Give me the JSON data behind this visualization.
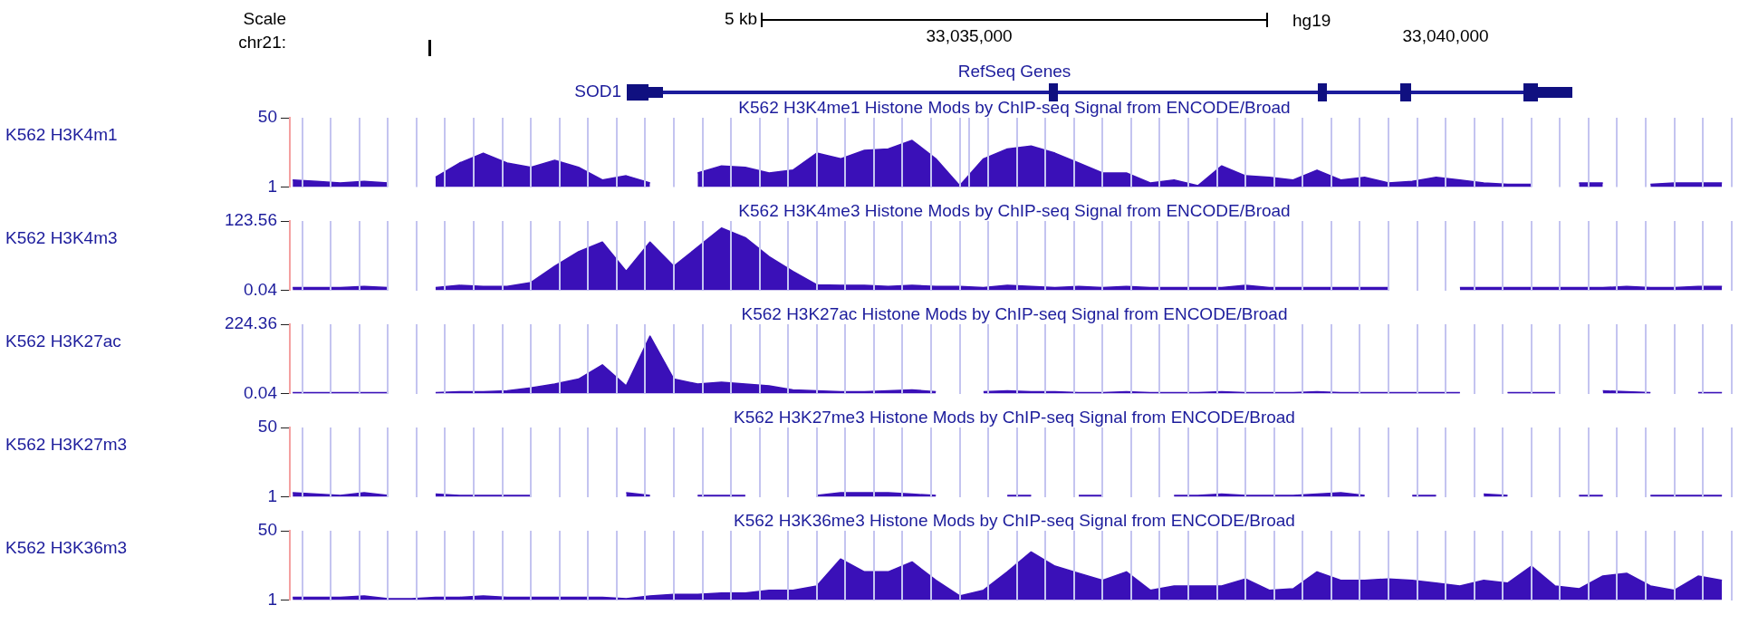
{
  "chart_data": [
    {
      "type": "area",
      "title": "K562 H3K4me1 Histone Mods by ChIP-seq Signal from ENCODE/Broad",
      "annotations": [
        "Scale",
        "chr21:",
        "5 kb",
        "hg19",
        "RefSeq Genes",
        "SOD1"
      ],
      "x": [
        33027900,
        33028150,
        33028400,
        33028650,
        33028900,
        33029150,
        33029400,
        33029650,
        33029900,
        33030150,
        33030400,
        33030650,
        33030900,
        33031150,
        33031400,
        33031650,
        33031900,
        33032150,
        33032400,
        33032650,
        33032900,
        33033150,
        33033400,
        33033650,
        33033900,
        33034150,
        33034400,
        33034650,
        33034900,
        33035150,
        33035400,
        33035650,
        33035900,
        33036150,
        33036400,
        33036650,
        33036900,
        33037150,
        33037400,
        33037650,
        33037900,
        33038150,
        33038400,
        33038650,
        33038900,
        33039150,
        33039400,
        33039650,
        33039900,
        33040150,
        33040400,
        33040650,
        33040900,
        33041150,
        33041400,
        33041650,
        33041900,
        33042150,
        33042400,
        33042650,
        33042900
      ],
      "series": [
        {
          "name": "K562 H3K4m1",
          "color": "#3a10b8",
          "values": [
            6,
            5,
            4,
            5,
            4,
            null,
            8,
            18,
            25,
            18,
            15,
            20,
            15,
            6,
            9,
            4,
            null,
            11,
            16,
            15,
            11,
            13,
            25,
            21,
            27,
            28,
            34,
            21,
            2,
            21,
            28,
            30,
            25,
            18,
            11,
            11,
            4,
            6,
            2,
            16,
            9,
            8,
            6,
            13,
            6,
            8,
            4,
            5,
            8,
            6,
            4,
            3,
            3,
            null,
            4,
            4,
            null,
            3,
            4,
            4,
            4
          ]
        }
      ],
      "xlim": [
        33027870,
        33043060
      ],
      "xticks": [
        {
          "value": 33028000,
          "label": null
        },
        {
          "value": 33028300,
          "label": null
        },
        {
          "value": 33028600,
          "label": null
        },
        {
          "value": 33028900,
          "label": null
        },
        {
          "value": 33029200,
          "label": null
        },
        {
          "value": 33029500,
          "label": null
        },
        {
          "value": 33029800,
          "label": null
        },
        {
          "value": 33030100,
          "label": null
        },
        {
          "value": 33030400,
          "label": null
        },
        {
          "value": 33030700,
          "label": null
        },
        {
          "value": 33031000,
          "label": null
        },
        {
          "value": 33031300,
          "label": null
        },
        {
          "value": 33031600,
          "label": null
        },
        {
          "value": 33031900,
          "label": null
        },
        {
          "value": 33032200,
          "label": null
        },
        {
          "value": 33032500,
          "label": null
        },
        {
          "value": 33032800,
          "label": null
        },
        {
          "value": 33033100,
          "label": null
        },
        {
          "value": 33033400,
          "label": null
        },
        {
          "value": 33033700,
          "label": null
        },
        {
          "value": 33034000,
          "label": null
        },
        {
          "value": 33034300,
          "label": null
        },
        {
          "value": 33034600,
          "label": null
        },
        {
          "value": 33034900,
          "label": null
        },
        {
          "value": 33035000,
          "label": "33,035,000"
        },
        {
          "value": 33035200,
          "label": null
        },
        {
          "value": 33035500,
          "label": null
        },
        {
          "value": 33035800,
          "label": null
        },
        {
          "value": 33036100,
          "label": null
        },
        {
          "value": 33036400,
          "label": null
        },
        {
          "value": 33036700,
          "label": null
        },
        {
          "value": 33037000,
          "label": null
        },
        {
          "value": 33037300,
          "label": null
        },
        {
          "value": 33037600,
          "label": null
        },
        {
          "value": 33037900,
          "label": null
        },
        {
          "value": 33038200,
          "label": null
        },
        {
          "value": 33038500,
          "label": null
        },
        {
          "value": 33038800,
          "label": null
        },
        {
          "value": 33039100,
          "label": null
        },
        {
          "value": 33039400,
          "label": null
        },
        {
          "value": 33039700,
          "label": null
        },
        {
          "value": 33040000,
          "label": "33,040,000"
        },
        {
          "value": 33040300,
          "label": null
        },
        {
          "value": 33040600,
          "label": null
        },
        {
          "value": 33040900,
          "label": null
        },
        {
          "value": 33041200,
          "label": null
        },
        {
          "value": 33041500,
          "label": null
        },
        {
          "value": 33041800,
          "label": null
        },
        {
          "value": 33042100,
          "label": null
        },
        {
          "value": 33042400,
          "label": null
        },
        {
          "value": 33042700,
          "label": null
        },
        {
          "value": 33043000,
          "label": null
        }
      ],
      "ylim": [
        1,
        50
      ],
      "yticks": [
        1,
        50
      ],
      "grid": "x"
    },
    {
      "type": "area",
      "title": "K562 H3K4me3 Histone Mods by ChIP-seq Signal from ENCODE/Broad",
      "x": [
        33027900,
        33028150,
        33028400,
        33028650,
        33028900,
        33029150,
        33029400,
        33029650,
        33029900,
        33030150,
        33030400,
        33030650,
        33030900,
        33031150,
        33031400,
        33031650,
        33031900,
        33032150,
        33032400,
        33032650,
        33032900,
        33033150,
        33033400,
        33033650,
        33033900,
        33034150,
        33034400,
        33034650,
        33034900,
        33035150,
        33035400,
        33035650,
        33035900,
        33036150,
        33036400,
        33036650,
        33036900,
        33037150,
        33037400,
        33037650,
        33037900,
        33038150,
        33038400,
        33038650,
        33038900,
        33039150,
        33039400,
        33039650,
        33039900,
        33040150,
        33040400,
        33040650,
        33040900,
        33041150,
        33041400,
        33041650,
        33041900,
        33042150,
        33042400,
        33042650,
        33042900
      ],
      "series": [
        {
          "name": "K562 H3K4m3",
          "color": "#3a10b8",
          "values": [
            5,
            5,
            5,
            7,
            5,
            null,
            5,
            9,
            7,
            7,
            14,
            43,
            69,
            86,
            34,
            86,
            43,
            77,
            111,
            94,
            60,
            34,
            10,
            9,
            9,
            7,
            9,
            7,
            7,
            5,
            9,
            7,
            5,
            7,
            5,
            7,
            5,
            5,
            5,
            5,
            9,
            5,
            5,
            5,
            5,
            5,
            5,
            null,
            null,
            5,
            5,
            5,
            5,
            5,
            5,
            5,
            7,
            5,
            5,
            7,
            7
          ]
        }
      ],
      "xlim": [
        33027870,
        33043060
      ],
      "tick_labels": "y",
      "xticks": [
        {
          "value": 33028000,
          "label": null
        },
        {
          "value": 33028300,
          "label": null
        },
        {
          "value": 33028600,
          "label": null
        },
        {
          "value": 33028900,
          "label": null
        },
        {
          "value": 33029200,
          "label": null
        },
        {
          "value": 33029500,
          "label": null
        },
        {
          "value": 33029800,
          "label": null
        },
        {
          "value": 33030100,
          "label": null
        },
        {
          "value": 33030400,
          "label": null
        },
        {
          "value": 33030700,
          "label": null
        },
        {
          "value": 33031000,
          "label": null
        },
        {
          "value": 33031300,
          "label": null
        },
        {
          "value": 33031600,
          "label": null
        },
        {
          "value": 33031900,
          "label": null
        },
        {
          "value": 33032200,
          "label": null
        },
        {
          "value": 33032500,
          "label": null
        },
        {
          "value": 33032800,
          "label": null
        },
        {
          "value": 33033100,
          "label": null
        },
        {
          "value": 33033400,
          "label": null
        },
        {
          "value": 33033700,
          "label": null
        },
        {
          "value": 33034000,
          "label": null
        },
        {
          "value": 33034300,
          "label": null
        },
        {
          "value": 33034600,
          "label": null
        },
        {
          "value": 33034900,
          "label": null
        },
        {
          "value": 33035200,
          "label": null
        },
        {
          "value": 33035500,
          "label": null
        },
        {
          "value": 33035800,
          "label": null
        },
        {
          "value": 33036100,
          "label": null
        },
        {
          "value": 33036400,
          "label": null
        },
        {
          "value": 33036700,
          "label": null
        },
        {
          "value": 33037000,
          "label": null
        },
        {
          "value": 33037300,
          "label": null
        },
        {
          "value": 33037600,
          "label": null
        },
        {
          "value": 33037900,
          "label": null
        },
        {
          "value": 33038200,
          "label": null
        },
        {
          "value": 33038500,
          "label": null
        },
        {
          "value": 33038800,
          "label": null
        },
        {
          "value": 33039100,
          "label": null
        },
        {
          "value": 33039400,
          "label": null
        },
        {
          "value": 33039700,
          "label": null
        },
        {
          "value": 33040000,
          "label": null
        },
        {
          "value": 33040300,
          "label": null
        },
        {
          "value": 33040600,
          "label": null
        },
        {
          "value": 33040900,
          "label": null
        },
        {
          "value": 33041200,
          "label": null
        },
        {
          "value": 33041500,
          "label": null
        },
        {
          "value": 33041800,
          "label": null
        },
        {
          "value": 33042100,
          "label": null
        },
        {
          "value": 33042400,
          "label": null
        },
        {
          "value": 33042700,
          "label": null
        },
        {
          "value": 33043000,
          "label": null
        }
      ],
      "ylim": [
        0.04,
        123.56
      ],
      "yticks": [
        0.04,
        123.56
      ],
      "grid": "x"
    },
    {
      "type": "area",
      "title": "K562 H3K27ac Histone Mods by ChIP-seq Signal from ENCODE/Broad",
      "x": [
        33027900,
        33028150,
        33028400,
        33028650,
        33028900,
        33029150,
        33029400,
        33029650,
        33029900,
        33030150,
        33030400,
        33030650,
        33030900,
        33031150,
        33031400,
        33031650,
        33031900,
        33032150,
        33032400,
        33032650,
        33032900,
        33033150,
        33033400,
        33033650,
        33033900,
        33034150,
        33034400,
        33034650,
        33034900,
        33035150,
        33035400,
        33035650,
        33035900,
        33036150,
        33036400,
        33036650,
        33036900,
        33037150,
        33037400,
        33037650,
        33037900,
        33038150,
        33038400,
        33038650,
        33038900,
        33039150,
        33039400,
        33039650,
        33039900,
        33040150,
        33040400,
        33040650,
        33040900,
        33041150,
        33041400,
        33041650,
        33041900,
        33042150,
        33042400,
        33042650,
        33042900
      ],
      "series": [
        {
          "name": "K562 H3K27ac",
          "color": "#3a10b8",
          "values": [
            3,
            3,
            3,
            3,
            3,
            null,
            3,
            6,
            6,
            9,
            19,
            31,
            47,
            93,
            25,
            186,
            47,
            31,
            37,
            31,
            25,
            12,
            9,
            6,
            6,
            9,
            12,
            6,
            null,
            6,
            9,
            6,
            6,
            3,
            3,
            6,
            3,
            3,
            3,
            6,
            3,
            3,
            3,
            6,
            3,
            3,
            3,
            3,
            3,
            3,
            null,
            3,
            3,
            3,
            null,
            9,
            6,
            3,
            null,
            3,
            3
          ]
        }
      ],
      "xlim": [
        33027870,
        33043060
      ],
      "tick_labels": "y",
      "xticks": [
        {
          "value": 33028000,
          "label": null
        },
        {
          "value": 33028300,
          "label": null
        },
        {
          "value": 33028600,
          "label": null
        },
        {
          "value": 33028900,
          "label": null
        },
        {
          "value": 33029200,
          "label": null
        },
        {
          "value": 33029500,
          "label": null
        },
        {
          "value": 33029800,
          "label": null
        },
        {
          "value": 33030100,
          "label": null
        },
        {
          "value": 33030400,
          "label": null
        },
        {
          "value": 33030700,
          "label": null
        },
        {
          "value": 33031000,
          "label": null
        },
        {
          "value": 33031300,
          "label": null
        },
        {
          "value": 33031600,
          "label": null
        },
        {
          "value": 33031900,
          "label": null
        },
        {
          "value": 33032200,
          "label": null
        },
        {
          "value": 33032500,
          "label": null
        },
        {
          "value": 33032800,
          "label": null
        },
        {
          "value": 33033100,
          "label": null
        },
        {
          "value": 33033400,
          "label": null
        },
        {
          "value": 33033700,
          "label": null
        },
        {
          "value": 33034000,
          "label": null
        },
        {
          "value": 33034300,
          "label": null
        },
        {
          "value": 33034600,
          "label": null
        },
        {
          "value": 33034900,
          "label": null
        },
        {
          "value": 33035200,
          "label": null
        },
        {
          "value": 33035500,
          "label": null
        },
        {
          "value": 33035800,
          "label": null
        },
        {
          "value": 33036100,
          "label": null
        },
        {
          "value": 33036400,
          "label": null
        },
        {
          "value": 33036700,
          "label": null
        },
        {
          "value": 33037000,
          "label": null
        },
        {
          "value": 33037300,
          "label": null
        },
        {
          "value": 33037600,
          "label": null
        },
        {
          "value": 33037900,
          "label": null
        },
        {
          "value": 33038200,
          "label": null
        },
        {
          "value": 33038500,
          "label": null
        },
        {
          "value": 33038800,
          "label": null
        },
        {
          "value": 33039100,
          "label": null
        },
        {
          "value": 33039400,
          "label": null
        },
        {
          "value": 33039700,
          "label": null
        },
        {
          "value": 33040000,
          "label": null
        },
        {
          "value": 33040300,
          "label": null
        },
        {
          "value": 33040600,
          "label": null
        },
        {
          "value": 33040900,
          "label": null
        },
        {
          "value": 33041200,
          "label": null
        },
        {
          "value": 33041500,
          "label": null
        },
        {
          "value": 33041800,
          "label": null
        },
        {
          "value": 33042100,
          "label": null
        },
        {
          "value": 33042400,
          "label": null
        },
        {
          "value": 33042700,
          "label": null
        },
        {
          "value": 33043000,
          "label": null
        }
      ],
      "ylim": [
        0.04,
        224.36
      ],
      "yticks": [
        0.04,
        224.36
      ],
      "grid": "x"
    },
    {
      "type": "area",
      "title": "K562 H3K27me3 Histone Mods by ChIP-seq Signal from ENCODE/Broad",
      "x": [
        33027900,
        33028150,
        33028400,
        33028650,
        33028900,
        33029150,
        33029400,
        33029650,
        33029900,
        33030150,
        33030400,
        33030650,
        33030900,
        33031150,
        33031400,
        33031650,
        33031900,
        33032150,
        33032400,
        33032650,
        33032900,
        33033150,
        33033400,
        33033650,
        33033900,
        33034150,
        33034400,
        33034650,
        33034900,
        33035150,
        33035400,
        33035650,
        33035900,
        33036150,
        33036400,
        33036650,
        33036900,
        33037150,
        33037400,
        33037650,
        33037900,
        33038150,
        33038400,
        33038650,
        33038900,
        33039150,
        33039400,
        33039650,
        33039900,
        33040150,
        33040400,
        33040650,
        33040900,
        33041150,
        33041400,
        33041650,
        33041900,
        33042150,
        33042400,
        33042650,
        33042900
      ],
      "series": [
        {
          "name": "K562 H3K27m3",
          "color": "#3a10b8",
          "values": [
            4,
            3,
            2,
            4,
            2,
            null,
            3,
            2,
            2,
            2,
            2,
            null,
            null,
            null,
            4,
            2,
            null,
            2,
            2,
            2,
            null,
            null,
            2,
            4,
            4,
            4,
            3,
            2,
            null,
            null,
            2,
            2,
            null,
            2,
            2,
            null,
            null,
            2,
            2,
            3,
            2,
            2,
            2,
            3,
            4,
            2,
            null,
            2,
            2,
            null,
            3,
            2,
            null,
            null,
            2,
            2,
            null,
            2,
            2,
            2,
            2
          ]
        }
      ],
      "xlim": [
        33027870,
        33043060
      ],
      "tick_labels": "y",
      "xticks": [
        {
          "value": 33028000,
          "label": null
        },
        {
          "value": 33028300,
          "label": null
        },
        {
          "value": 33028600,
          "label": null
        },
        {
          "value": 33028900,
          "label": null
        },
        {
          "value": 33029200,
          "label": null
        },
        {
          "value": 33029500,
          "label": null
        },
        {
          "value": 33029800,
          "label": null
        },
        {
          "value": 33030100,
          "label": null
        },
        {
          "value": 33030400,
          "label": null
        },
        {
          "value": 33030700,
          "label": null
        },
        {
          "value": 33031000,
          "label": null
        },
        {
          "value": 33031300,
          "label": null
        },
        {
          "value": 33031600,
          "label": null
        },
        {
          "value": 33031900,
          "label": null
        },
        {
          "value": 33032200,
          "label": null
        },
        {
          "value": 33032500,
          "label": null
        },
        {
          "value": 33032800,
          "label": null
        },
        {
          "value": 33033100,
          "label": null
        },
        {
          "value": 33033400,
          "label": null
        },
        {
          "value": 33033700,
          "label": null
        },
        {
          "value": 33034000,
          "label": null
        },
        {
          "value": 33034300,
          "label": null
        },
        {
          "value": 33034600,
          "label": null
        },
        {
          "value": 33034900,
          "label": null
        },
        {
          "value": 33035200,
          "label": null
        },
        {
          "value": 33035500,
          "label": null
        },
        {
          "value": 33035800,
          "label": null
        },
        {
          "value": 33036100,
          "label": null
        },
        {
          "value": 33036400,
          "label": null
        },
        {
          "value": 33036700,
          "label": null
        },
        {
          "value": 33037000,
          "label": null
        },
        {
          "value": 33037300,
          "label": null
        },
        {
          "value": 33037600,
          "label": null
        },
        {
          "value": 33037900,
          "label": null
        },
        {
          "value": 33038200,
          "label": null
        },
        {
          "value": 33038500,
          "label": null
        },
        {
          "value": 33038800,
          "label": null
        },
        {
          "value": 33039100,
          "label": null
        },
        {
          "value": 33039400,
          "label": null
        },
        {
          "value": 33039700,
          "label": null
        },
        {
          "value": 33040000,
          "label": null
        },
        {
          "value": 33040300,
          "label": null
        },
        {
          "value": 33040600,
          "label": null
        },
        {
          "value": 33040900,
          "label": null
        },
        {
          "value": 33041200,
          "label": null
        },
        {
          "value": 33041500,
          "label": null
        },
        {
          "value": 33041800,
          "label": null
        },
        {
          "value": 33042100,
          "label": null
        },
        {
          "value": 33042400,
          "label": null
        },
        {
          "value": 33042700,
          "label": null
        },
        {
          "value": 33043000,
          "label": null
        }
      ],
      "ylim": [
        1,
        50
      ],
      "yticks": [
        1,
        50
      ],
      "grid": "x"
    },
    {
      "type": "area",
      "title": "K562 H3K36me3 Histone Mods by ChIP-seq Signal from ENCODE/Broad",
      "x": [
        33027900,
        33028150,
        33028400,
        33028650,
        33028900,
        33029150,
        33029400,
        33029650,
        33029900,
        33030150,
        33030400,
        33030650,
        33030900,
        33031150,
        33031400,
        33031650,
        33031900,
        33032150,
        33032400,
        33032650,
        33032900,
        33033150,
        33033400,
        33033650,
        33033900,
        33034150,
        33034400,
        33034650,
        33034900,
        33035150,
        33035400,
        33035650,
        33035900,
        33036150,
        33036400,
        33036650,
        33036900,
        33037150,
        33037400,
        33037650,
        33037900,
        33038150,
        33038400,
        33038650,
        33038900,
        33039150,
        33039400,
        33039650,
        33039900,
        33040150,
        33040400,
        33040650,
        33040900,
        33041150,
        33041400,
        33041650,
        33041900,
        33042150,
        33042400,
        33042650,
        33042900
      ],
      "series": [
        {
          "name": "K562 H3K36m3",
          "color": "#3a10b8",
          "values": [
            3,
            3,
            3,
            4,
            2,
            2,
            3,
            3,
            4,
            3,
            3,
            3,
            3,
            3,
            2,
            4,
            5,
            5,
            6,
            6,
            8,
            8,
            11,
            30,
            21,
            21,
            28,
            15,
            4,
            8,
            21,
            35,
            25,
            20,
            15,
            21,
            8,
            11,
            11,
            11,
            16,
            8,
            9,
            21,
            15,
            15,
            16,
            15,
            13,
            11,
            15,
            13,
            25,
            11,
            9,
            18,
            20,
            11,
            8,
            18,
            15
          ]
        }
      ],
      "xlim": [
        33027870,
        33043060
      ],
      "tick_labels": "y",
      "xticks": [
        {
          "value": 33028000,
          "label": null
        },
        {
          "value": 33028300,
          "label": null
        },
        {
          "value": 33028600,
          "label": null
        },
        {
          "value": 33028900,
          "label": null
        },
        {
          "value": 33029200,
          "label": null
        },
        {
          "value": 33029500,
          "label": null
        },
        {
          "value": 33029800,
          "label": null
        },
        {
          "value": 33030100,
          "label": null
        },
        {
          "value": 33030400,
          "label": null
        },
        {
          "value": 33030700,
          "label": null
        },
        {
          "value": 33031000,
          "label": null
        },
        {
          "value": 33031300,
          "label": null
        },
        {
          "value": 33031600,
          "label": null
        },
        {
          "value": 33031900,
          "label": null
        },
        {
          "value": 33032200,
          "label": null
        },
        {
          "value": 33032500,
          "label": null
        },
        {
          "value": 33032800,
          "label": null
        },
        {
          "value": 33033100,
          "label": null
        },
        {
          "value": 33033400,
          "label": null
        },
        {
          "value": 33033700,
          "label": null
        },
        {
          "value": 33034000,
          "label": null
        },
        {
          "value": 33034300,
          "label": null
        },
        {
          "value": 33034600,
          "label": null
        },
        {
          "value": 33034900,
          "label": null
        },
        {
          "value": 33035200,
          "label": null
        },
        {
          "value": 33035500,
          "label": null
        },
        {
          "value": 33035800,
          "label": null
        },
        {
          "value": 33036100,
          "label": null
        },
        {
          "value": 33036400,
          "label": null
        },
        {
          "value": 33036700,
          "label": null
        },
        {
          "value": 33037000,
          "label": null
        },
        {
          "value": 33037300,
          "label": null
        },
        {
          "value": 33037600,
          "label": null
        },
        {
          "value": 33037900,
          "label": null
        },
        {
          "value": 33038200,
          "label": null
        },
        {
          "value": 33038500,
          "label": null
        },
        {
          "value": 33038800,
          "label": null
        },
        {
          "value": 33039100,
          "label": null
        },
        {
          "value": 33039400,
          "label": null
        },
        {
          "value": 33039700,
          "label": null
        },
        {
          "value": 33040000,
          "label": null
        },
        {
          "value": 33040300,
          "label": null
        },
        {
          "value": 33040600,
          "label": null
        },
        {
          "value": 33040900,
          "label": null
        },
        {
          "value": 33041200,
          "label": null
        },
        {
          "value": 33041500,
          "label": null
        },
        {
          "value": 33041800,
          "label": null
        },
        {
          "value": 33042100,
          "label": null
        },
        {
          "value": 33042400,
          "label": null
        },
        {
          "value": 33042700,
          "label": null
        },
        {
          "value": 33043000,
          "label": null
        }
      ],
      "ylim": [
        1,
        50
      ],
      "yticks": [
        1,
        50
      ],
      "grid": "x"
    }
  ]
}
